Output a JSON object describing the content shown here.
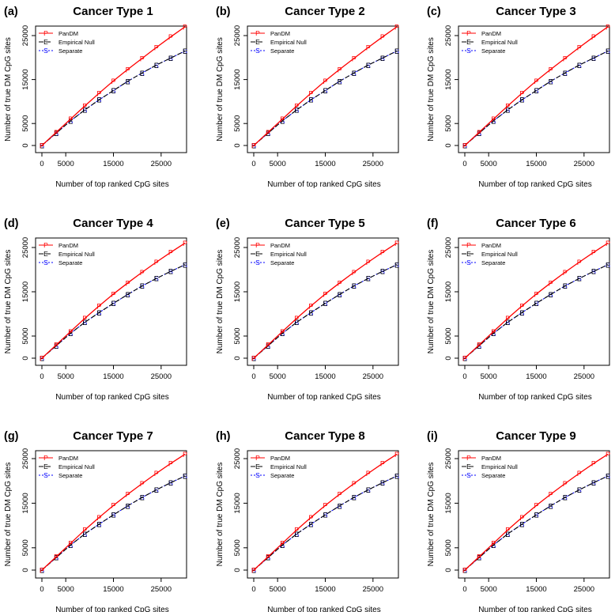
{
  "colors": {
    "pandm": "#ff0000",
    "empirical": "#000000",
    "separate": "#0000ff",
    "axis": "#000000"
  },
  "chart_data": [
    {
      "panel_label": "(a)",
      "title": "Cancer Type 1",
      "type": "line",
      "xlabel": "Number of top ranked CpG sites",
      "ylabel": "Number of true DM CpG sites",
      "xlim": [
        0,
        30000
      ],
      "ylim": [
        0,
        27500
      ],
      "xticks": [
        "0",
        "5000",
        "15000",
        "25000"
      ],
      "xtick_values": [
        0,
        5000,
        15000,
        25000
      ],
      "yticks": [
        "0",
        "5000",
        "15000",
        "25000"
      ],
      "ytick_values": [
        0,
        5000,
        15000,
        25000
      ],
      "legend": [
        {
          "label": "PanDM",
          "marker": "P"
        },
        {
          "label": "Empirical Null",
          "marker": "E"
        },
        {
          "label": "Separate",
          "marker": "S"
        }
      ],
      "x": [
        0,
        3000,
        6000,
        9000,
        12000,
        15000,
        18000,
        21000,
        24000,
        27000,
        30000
      ],
      "series": [
        {
          "name": "PanDM",
          "marker": "P",
          "values": [
            0,
            3000,
            6000,
            9000,
            11900,
            14700,
            17300,
            19800,
            22300,
            24700,
            27000
          ]
        },
        {
          "name": "Empirical Null",
          "marker": "E",
          "values": [
            0,
            2800,
            5600,
            8100,
            10400,
            12500,
            14600,
            16500,
            18300,
            19900,
            21500
          ]
        },
        {
          "name": "Separate",
          "marker": "S",
          "values": [
            0,
            2800,
            5600,
            8100,
            10400,
            12500,
            14600,
            16500,
            18300,
            19900,
            21500
          ]
        }
      ]
    },
    {
      "panel_label": "(b)",
      "title": "Cancer Type 2",
      "type": "line",
      "xlabel": "Number of top ranked CpG sites",
      "ylabel": "Number of true DM CpG sites",
      "xlim": [
        0,
        30000
      ],
      "ylim": [
        0,
        27500
      ],
      "xticks": [
        "0",
        "5000",
        "15000",
        "25000"
      ],
      "xtick_values": [
        0,
        5000,
        15000,
        25000
      ],
      "yticks": [
        "0",
        "5000",
        "15000",
        "25000"
      ],
      "ytick_values": [
        0,
        5000,
        15000,
        25000
      ],
      "legend": [
        {
          "label": "PanDM",
          "marker": "P"
        },
        {
          "label": "Empirical Null",
          "marker": "E"
        },
        {
          "label": "Separate",
          "marker": "S"
        }
      ],
      "x": [
        0,
        3000,
        6000,
        9000,
        12000,
        15000,
        18000,
        21000,
        24000,
        27000,
        30000
      ],
      "series": [
        {
          "name": "PanDM",
          "marker": "P",
          "values": [
            0,
            3000,
            6000,
            9000,
            11900,
            14700,
            17300,
            19800,
            22300,
            24700,
            27000
          ]
        },
        {
          "name": "Empirical Null",
          "marker": "E",
          "values": [
            0,
            2800,
            5600,
            8100,
            10400,
            12500,
            14600,
            16500,
            18300,
            19900,
            21500
          ]
        },
        {
          "name": "Separate",
          "marker": "S",
          "values": [
            0,
            2800,
            5600,
            8100,
            10400,
            12500,
            14600,
            16500,
            18300,
            19900,
            21500
          ]
        }
      ]
    },
    {
      "panel_label": "(c)",
      "title": "Cancer Type 3",
      "type": "line",
      "xlabel": "Number of top ranked CpG sites",
      "ylabel": "Number of true DM CpG sites",
      "xlim": [
        0,
        30000
      ],
      "ylim": [
        0,
        27500
      ],
      "xticks": [
        "0",
        "5000",
        "15000",
        "25000"
      ],
      "xtick_values": [
        0,
        5000,
        15000,
        25000
      ],
      "yticks": [
        "0",
        "5000",
        "15000",
        "25000"
      ],
      "ytick_values": [
        0,
        5000,
        15000,
        25000
      ],
      "legend": [
        {
          "label": "PanDM",
          "marker": "P"
        },
        {
          "label": "Empirical Null",
          "marker": "E"
        },
        {
          "label": "Separate",
          "marker": "S"
        }
      ],
      "x": [
        0,
        3000,
        6000,
        9000,
        12000,
        15000,
        18000,
        21000,
        24000,
        27000,
        30000
      ],
      "series": [
        {
          "name": "PanDM",
          "marker": "P",
          "values": [
            0,
            3000,
            6000,
            9000,
            11900,
            14700,
            17300,
            19800,
            22300,
            24700,
            27000
          ]
        },
        {
          "name": "Empirical Null",
          "marker": "E",
          "values": [
            0,
            2800,
            5600,
            8100,
            10400,
            12500,
            14600,
            16500,
            18300,
            19900,
            21500
          ]
        },
        {
          "name": "Separate",
          "marker": "S",
          "values": [
            0,
            2800,
            5600,
            8100,
            10400,
            12500,
            14600,
            16500,
            18300,
            19900,
            21500
          ]
        }
      ]
    },
    {
      "panel_label": "(d)",
      "title": "Cancer Type 4",
      "type": "line",
      "xlabel": "Number of top ranked CpG sites",
      "ylabel": "Number of true DM CpG sites",
      "xlim": [
        0,
        30000
      ],
      "ylim": [
        0,
        26500
      ],
      "xticks": [
        "0",
        "5000",
        "15000",
        "25000"
      ],
      "xtick_values": [
        0,
        5000,
        15000,
        25000
      ],
      "yticks": [
        "0",
        "5000",
        "15000",
        "25000"
      ],
      "ytick_values": [
        0,
        5000,
        15000,
        25000
      ],
      "legend": [
        {
          "label": "PanDM",
          "marker": "P"
        },
        {
          "label": "Empirical Null",
          "marker": "E"
        },
        {
          "label": "Separate",
          "marker": "S"
        }
      ],
      "x": [
        0,
        3000,
        6000,
        9000,
        12000,
        15000,
        18000,
        21000,
        24000,
        27000,
        30000
      ],
      "series": [
        {
          "name": "PanDM",
          "marker": "P",
          "values": [
            0,
            3000,
            6000,
            9000,
            11800,
            14500,
            17000,
            19400,
            21700,
            23900,
            26000
          ]
        },
        {
          "name": "Empirical Null",
          "marker": "E",
          "values": [
            0,
            2800,
            5600,
            8100,
            10300,
            12400,
            14400,
            16300,
            18000,
            19600,
            21100
          ]
        },
        {
          "name": "Separate",
          "marker": "S",
          "values": [
            0,
            2800,
            5600,
            8100,
            10300,
            12400,
            14400,
            16300,
            18000,
            19600,
            21100
          ]
        }
      ]
    },
    {
      "panel_label": "(e)",
      "title": "Cancer Type 5",
      "type": "line",
      "xlabel": "Number of top ranked CpG sites",
      "ylabel": "Number of true DM CpG sites",
      "xlim": [
        0,
        30000
      ],
      "ylim": [
        0,
        26500
      ],
      "xticks": [
        "0",
        "5000",
        "15000",
        "25000"
      ],
      "xtick_values": [
        0,
        5000,
        15000,
        25000
      ],
      "yticks": [
        "0",
        "5000",
        "15000",
        "25000"
      ],
      "ytick_values": [
        0,
        5000,
        15000,
        25000
      ],
      "legend": [
        {
          "label": "PanDM",
          "marker": "P"
        },
        {
          "label": "Empirical Null",
          "marker": "E"
        },
        {
          "label": "Separate",
          "marker": "S"
        }
      ],
      "x": [
        0,
        3000,
        6000,
        9000,
        12000,
        15000,
        18000,
        21000,
        24000,
        27000,
        30000
      ],
      "series": [
        {
          "name": "PanDM",
          "marker": "P",
          "values": [
            0,
            3000,
            6000,
            9000,
            11800,
            14500,
            17000,
            19400,
            21700,
            23900,
            26000
          ]
        },
        {
          "name": "Empirical Null",
          "marker": "E",
          "values": [
            0,
            2800,
            5600,
            8100,
            10300,
            12400,
            14400,
            16300,
            18000,
            19600,
            21100
          ]
        },
        {
          "name": "Separate",
          "marker": "S",
          "values": [
            0,
            2800,
            5600,
            8100,
            10300,
            12400,
            14400,
            16300,
            18000,
            19600,
            21100
          ]
        }
      ]
    },
    {
      "panel_label": "(f)",
      "title": "Cancer Type 6",
      "type": "line",
      "xlabel": "Number of top ranked CpG sites",
      "ylabel": "Number of true DM CpG sites",
      "xlim": [
        0,
        30000
      ],
      "ylim": [
        0,
        26500
      ],
      "xticks": [
        "0",
        "5000",
        "15000",
        "25000"
      ],
      "xtick_values": [
        0,
        5000,
        15000,
        25000
      ],
      "yticks": [
        "0",
        "5000",
        "15000",
        "25000"
      ],
      "ytick_values": [
        0,
        5000,
        15000,
        25000
      ],
      "legend": [
        {
          "label": "PanDM",
          "marker": "P"
        },
        {
          "label": "Empirical Null",
          "marker": "E"
        },
        {
          "label": "Separate",
          "marker": "S"
        }
      ],
      "x": [
        0,
        3000,
        6000,
        9000,
        12000,
        15000,
        18000,
        21000,
        24000,
        27000,
        30000
      ],
      "series": [
        {
          "name": "PanDM",
          "marker": "P",
          "values": [
            0,
            3000,
            6000,
            9000,
            11800,
            14500,
            17000,
            19400,
            21700,
            23900,
            26000
          ]
        },
        {
          "name": "Empirical Null",
          "marker": "E",
          "values": [
            0,
            2800,
            5600,
            8100,
            10300,
            12400,
            14400,
            16300,
            18000,
            19600,
            21100
          ]
        },
        {
          "name": "Separate",
          "marker": "S",
          "values": [
            0,
            2800,
            5600,
            8100,
            10300,
            12400,
            14400,
            16300,
            18000,
            19600,
            21100
          ]
        }
      ]
    },
    {
      "panel_label": "(g)",
      "title": "Cancer Type 7",
      "type": "line",
      "xlabel": "Number of top ranked CpG sites",
      "ylabel": "Number of true DM CpG sites",
      "xlim": [
        0,
        30000
      ],
      "ylim": [
        0,
        26500
      ],
      "xticks": [
        "0",
        "5000",
        "15000",
        "25000"
      ],
      "xtick_values": [
        0,
        5000,
        15000,
        25000
      ],
      "yticks": [
        "0",
        "5000",
        "15000",
        "25000"
      ],
      "ytick_values": [
        0,
        5000,
        15000,
        25000
      ],
      "legend": [
        {
          "label": "PanDM",
          "marker": "P"
        },
        {
          "label": "Empirical Null",
          "marker": "E"
        },
        {
          "label": "Separate",
          "marker": "S"
        }
      ],
      "x": [
        0,
        3000,
        6000,
        9000,
        12000,
        15000,
        18000,
        21000,
        24000,
        27000,
        30000
      ],
      "series": [
        {
          "name": "PanDM",
          "marker": "P",
          "values": [
            0,
            3000,
            6000,
            9000,
            11800,
            14500,
            17000,
            19400,
            21700,
            23900,
            26000
          ]
        },
        {
          "name": "Empirical Null",
          "marker": "E",
          "values": [
            0,
            2800,
            5600,
            8100,
            10300,
            12400,
            14400,
            16300,
            18000,
            19600,
            21100
          ]
        },
        {
          "name": "Separate",
          "marker": "S",
          "values": [
            0,
            2800,
            5600,
            8100,
            10300,
            12400,
            14400,
            16300,
            18000,
            19600,
            21100
          ]
        }
      ]
    },
    {
      "panel_label": "(h)",
      "title": "Cancer Type 8",
      "type": "line",
      "xlabel": "Number of top ranked CpG sites",
      "ylabel": "Number of true DM CpG sites",
      "xlim": [
        0,
        30000
      ],
      "ylim": [
        0,
        26500
      ],
      "xticks": [
        "0",
        "5000",
        "15000",
        "25000"
      ],
      "xtick_values": [
        0,
        5000,
        15000,
        25000
      ],
      "yticks": [
        "0",
        "5000",
        "15000",
        "25000"
      ],
      "ytick_values": [
        0,
        5000,
        15000,
        25000
      ],
      "legend": [
        {
          "label": "PanDM",
          "marker": "P"
        },
        {
          "label": "Empirical Null",
          "marker": "E"
        },
        {
          "label": "Separate",
          "marker": "S"
        }
      ],
      "x": [
        0,
        3000,
        6000,
        9000,
        12000,
        15000,
        18000,
        21000,
        24000,
        27000,
        30000
      ],
      "series": [
        {
          "name": "PanDM",
          "marker": "P",
          "values": [
            0,
            3000,
            6000,
            9000,
            11800,
            14500,
            17000,
            19400,
            21700,
            23900,
            26000
          ]
        },
        {
          "name": "Empirical Null",
          "marker": "E",
          "values": [
            0,
            2800,
            5600,
            8100,
            10300,
            12400,
            14400,
            16300,
            18000,
            19600,
            21100
          ]
        },
        {
          "name": "Separate",
          "marker": "S",
          "values": [
            0,
            2800,
            5600,
            8100,
            10300,
            12400,
            14400,
            16300,
            18000,
            19600,
            21100
          ]
        }
      ]
    },
    {
      "panel_label": "(i)",
      "title": "Cancer Type 9",
      "type": "line",
      "xlabel": "Number of top ranked CpG sites",
      "ylabel": "Number of true DM CpG sites",
      "xlim": [
        0,
        30000
      ],
      "ylim": [
        0,
        26500
      ],
      "xticks": [
        "0",
        "5000",
        "15000",
        "25000"
      ],
      "xtick_values": [
        0,
        5000,
        15000,
        25000
      ],
      "yticks": [
        "0",
        "5000",
        "15000",
        "25000"
      ],
      "ytick_values": [
        0,
        5000,
        15000,
        25000
      ],
      "legend": [
        {
          "label": "PanDM",
          "marker": "P"
        },
        {
          "label": "Empirical Null",
          "marker": "E"
        },
        {
          "label": "Separate",
          "marker": "S"
        }
      ],
      "x": [
        0,
        3000,
        6000,
        9000,
        12000,
        15000,
        18000,
        21000,
        24000,
        27000,
        30000
      ],
      "series": [
        {
          "name": "PanDM",
          "marker": "P",
          "values": [
            0,
            3000,
            6000,
            9000,
            11800,
            14500,
            17000,
            19400,
            21700,
            23900,
            26000
          ]
        },
        {
          "name": "Empirical Null",
          "marker": "E",
          "values": [
            0,
            2800,
            5600,
            8100,
            10300,
            12400,
            14400,
            16300,
            18000,
            19600,
            21100
          ]
        },
        {
          "name": "Separate",
          "marker": "S",
          "values": [
            0,
            2800,
            5600,
            8100,
            10300,
            12400,
            14400,
            16300,
            18000,
            19600,
            21100
          ]
        }
      ]
    }
  ]
}
